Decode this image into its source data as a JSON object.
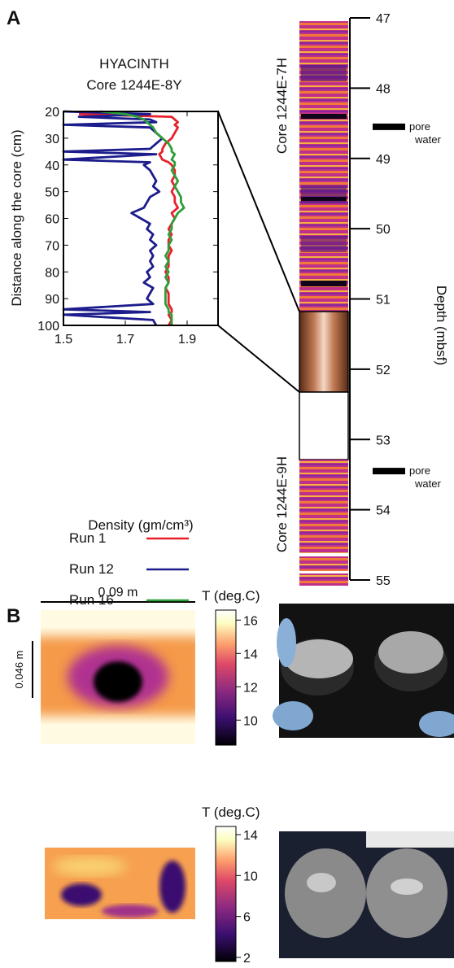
{
  "panels": [
    "A",
    "B"
  ],
  "chart_data": [
    {
      "type": "profile",
      "title": "HYACINTH",
      "subtitle": "Core 1244E-8Y",
      "x_label": "Density (gm/cm³)",
      "y_label": "Distance along the core (cm)",
      "xlim": [
        1.5,
        2.0
      ],
      "xticks": [
        1.5,
        1.7,
        1.9
      ],
      "ylim": [
        20,
        100
      ],
      "yticks": [
        20,
        30,
        40,
        50,
        60,
        70,
        80,
        90,
        100
      ],
      "y_inverted": true,
      "y": [
        20,
        21,
        22,
        23,
        24,
        25,
        26,
        28,
        30,
        32,
        34,
        35,
        36,
        38,
        39,
        40,
        42,
        44,
        46,
        48,
        50,
        52,
        54,
        56,
        58,
        60,
        62,
        64,
        66,
        68,
        70,
        72,
        74,
        76,
        78,
        80,
        82,
        84,
        86,
        88,
        90,
        92,
        94,
        95,
        96,
        98,
        100
      ],
      "series": [
        {
          "name": "Run 1",
          "color": "#e8202a",
          "values": [
            null,
            1.55,
            1.85,
            1.86,
            1.87,
            1.86,
            1.87,
            1.86,
            1.85,
            1.83,
            1.82,
            1.82,
            1.81,
            1.82,
            1.84,
            1.85,
            1.86,
            1.86,
            1.85,
            1.86,
            1.85,
            1.86,
            1.86,
            1.87,
            1.85,
            1.86,
            1.85,
            1.84,
            1.85,
            1.84,
            1.84,
            1.85,
            1.84,
            1.84,
            1.84,
            1.83,
            1.84,
            1.84,
            1.83,
            1.84,
            1.84,
            1.84,
            1.85,
            1.85,
            1.84,
            1.85,
            1.84
          ]
        },
        {
          "name": "Run 12",
          "color": "#1c1c8c",
          "values": [
            1.5,
            1.78,
            1.55,
            1.78,
            1.8,
            1.5,
            1.78,
            1.8,
            1.82,
            1.8,
            1.78,
            1.5,
            1.8,
            1.5,
            1.78,
            1.76,
            1.78,
            1.79,
            1.8,
            1.79,
            1.81,
            1.78,
            1.77,
            1.76,
            1.72,
            1.75,
            1.78,
            1.77,
            1.79,
            1.78,
            1.8,
            1.78,
            1.79,
            1.78,
            1.79,
            1.77,
            1.78,
            1.76,
            1.79,
            1.78,
            1.77,
            1.79,
            1.5,
            1.78,
            1.5,
            1.79,
            1.8
          ]
        },
        {
          "name": "Run 16",
          "color": "#2e9e3a",
          "values": [
            1.62,
            1.7,
            1.74,
            1.76,
            1.77,
            1.78,
            1.79,
            1.8,
            1.82,
            1.84,
            1.85,
            1.85,
            1.86,
            1.85,
            1.86,
            1.86,
            1.85,
            1.86,
            1.87,
            1.86,
            1.87,
            1.88,
            1.88,
            1.89,
            1.87,
            1.86,
            1.85,
            1.85,
            1.84,
            1.85,
            1.84,
            1.84,
            1.83,
            1.84,
            1.83,
            1.84,
            1.83,
            1.84,
            1.83,
            1.83,
            1.83,
            1.83,
            1.84,
            1.84,
            1.85,
            1.85,
            1.85
          ]
        }
      ]
    },
    {
      "type": "depth-axis",
      "y_label": "Depth (mbsf)",
      "ylim": [
        47,
        55
      ],
      "yticks": [
        47,
        48,
        49,
        50,
        51,
        52,
        53,
        54,
        55
      ],
      "core_labels": [
        "Core 1244E-7H",
        "Core 1244E-9H"
      ],
      "annotations": [
        {
          "depth": 48.55,
          "lines": [
            "pore",
            "water"
          ]
        },
        {
          "depth": 53.45,
          "lines": [
            "pore",
            "water"
          ]
        }
      ]
    },
    {
      "type": "colorbar",
      "title": "T (deg.C)",
      "clim": [
        8.5,
        16.6
      ],
      "ticks": [
        10,
        12,
        14,
        16
      ],
      "scale_labels": [
        "0.09 m",
        "0.046 m"
      ]
    },
    {
      "type": "colorbar",
      "title": "T (deg.C)",
      "clim": [
        1.6,
        14.8
      ],
      "ticks": [
        2,
        6,
        10,
        14
      ]
    }
  ]
}
